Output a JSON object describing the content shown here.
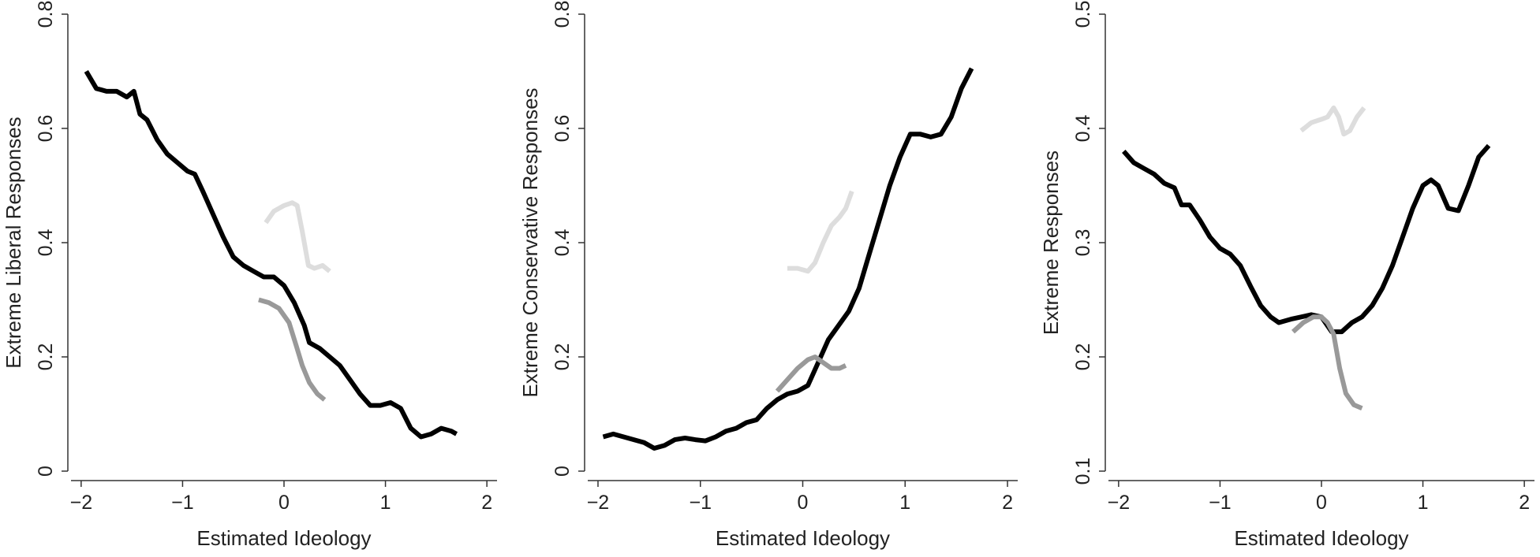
{
  "chart_data": [
    {
      "type": "line",
      "xlabel": "Estimated Ideology",
      "ylabel": "Extreme Liberal Responses",
      "xlim": [
        -2.1,
        2.1
      ],
      "ylim": [
        0,
        0.8
      ],
      "xticks": [
        -2,
        -1,
        0,
        1,
        2
      ],
      "xtick_labels": [
        "−2",
        "−1",
        "0",
        "1",
        "2"
      ],
      "yticks": [
        0,
        0.2,
        0.4,
        0.6,
        0.8
      ],
      "ytick_labels": [
        "0",
        "0.2",
        "0.4",
        "0.6",
        "0.8"
      ],
      "grid": false,
      "series": [
        {
          "color": "#000000",
          "points": [
            [
              -1.95,
              0.7
            ],
            [
              -1.85,
              0.67
            ],
            [
              -1.75,
              0.665
            ],
            [
              -1.65,
              0.665
            ],
            [
              -1.55,
              0.655
            ],
            [
              -1.48,
              0.665
            ],
            [
              -1.42,
              0.625
            ],
            [
              -1.35,
              0.615
            ],
            [
              -1.25,
              0.58
            ],
            [
              -1.15,
              0.555
            ],
            [
              -1.05,
              0.54
            ],
            [
              -0.95,
              0.525
            ],
            [
              -0.88,
              0.52
            ],
            [
              -0.8,
              0.49
            ],
            [
              -0.7,
              0.45
            ],
            [
              -0.6,
              0.41
            ],
            [
              -0.5,
              0.375
            ],
            [
              -0.4,
              0.36
            ],
            [
              -0.3,
              0.35
            ],
            [
              -0.2,
              0.34
            ],
            [
              -0.1,
              0.34
            ],
            [
              0.0,
              0.325
            ],
            [
              0.1,
              0.295
            ],
            [
              0.2,
              0.255
            ],
            [
              0.25,
              0.225
            ],
            [
              0.35,
              0.215
            ],
            [
              0.45,
              0.2
            ],
            [
              0.55,
              0.185
            ],
            [
              0.65,
              0.16
            ],
            [
              0.75,
              0.135
            ],
            [
              0.85,
              0.115
            ],
            [
              0.95,
              0.115
            ],
            [
              1.05,
              0.12
            ],
            [
              1.15,
              0.11
            ],
            [
              1.25,
              0.075
            ],
            [
              1.35,
              0.06
            ],
            [
              1.45,
              0.065
            ],
            [
              1.55,
              0.075
            ],
            [
              1.65,
              0.07
            ],
            [
              1.7,
              0.065
            ]
          ]
        },
        {
          "color": "#999999",
          "points": [
            [
              -0.25,
              0.3
            ],
            [
              -0.15,
              0.295
            ],
            [
              -0.05,
              0.285
            ],
            [
              0.05,
              0.26
            ],
            [
              0.12,
              0.22
            ],
            [
              0.18,
              0.185
            ],
            [
              0.25,
              0.155
            ],
            [
              0.33,
              0.135
            ],
            [
              0.4,
              0.125
            ]
          ]
        },
        {
          "color": "#dddddd",
          "points": [
            [
              -0.18,
              0.435
            ],
            [
              -0.1,
              0.455
            ],
            [
              0.0,
              0.465
            ],
            [
              0.08,
              0.47
            ],
            [
              0.13,
              0.465
            ],
            [
              0.18,
              0.42
            ],
            [
              0.24,
              0.36
            ],
            [
              0.3,
              0.355
            ],
            [
              0.38,
              0.36
            ],
            [
              0.45,
              0.35
            ]
          ]
        }
      ]
    },
    {
      "type": "line",
      "xlabel": "Estimated Ideology",
      "ylabel": "Extreme Conservative Responses",
      "xlim": [
        -2.1,
        2.1
      ],
      "ylim": [
        0,
        0.8
      ],
      "xticks": [
        -2,
        -1,
        0,
        1,
        2
      ],
      "xtick_labels": [
        "−2",
        "−1",
        "0",
        "1",
        "2"
      ],
      "yticks": [
        0,
        0.2,
        0.4,
        0.6,
        0.8
      ],
      "ytick_labels": [
        "0",
        "0.2",
        "0.4",
        "0.6",
        "0.8"
      ],
      "grid": false,
      "series": [
        {
          "color": "#000000",
          "points": [
            [
              -1.95,
              0.06
            ],
            [
              -1.85,
              0.065
            ],
            [
              -1.75,
              0.06
            ],
            [
              -1.65,
              0.055
            ],
            [
              -1.55,
              0.05
            ],
            [
              -1.45,
              0.04
            ],
            [
              -1.35,
              0.045
            ],
            [
              -1.25,
              0.055
            ],
            [
              -1.15,
              0.058
            ],
            [
              -1.05,
              0.055
            ],
            [
              -0.95,
              0.053
            ],
            [
              -0.85,
              0.06
            ],
            [
              -0.75,
              0.07
            ],
            [
              -0.65,
              0.075
            ],
            [
              -0.55,
              0.085
            ],
            [
              -0.45,
              0.09
            ],
            [
              -0.35,
              0.11
            ],
            [
              -0.25,
              0.125
            ],
            [
              -0.15,
              0.135
            ],
            [
              -0.05,
              0.14
            ],
            [
              0.05,
              0.15
            ],
            [
              0.15,
              0.19
            ],
            [
              0.25,
              0.23
            ],
            [
              0.35,
              0.255
            ],
            [
              0.45,
              0.28
            ],
            [
              0.55,
              0.32
            ],
            [
              0.65,
              0.38
            ],
            [
              0.75,
              0.44
            ],
            [
              0.85,
              0.5
            ],
            [
              0.95,
              0.55
            ],
            [
              1.05,
              0.59
            ],
            [
              1.15,
              0.59
            ],
            [
              1.25,
              0.585
            ],
            [
              1.35,
              0.59
            ],
            [
              1.45,
              0.62
            ],
            [
              1.55,
              0.67
            ],
            [
              1.65,
              0.705
            ]
          ]
        },
        {
          "color": "#999999",
          "points": [
            [
              -0.25,
              0.14
            ],
            [
              -0.15,
              0.16
            ],
            [
              -0.05,
              0.18
            ],
            [
              0.05,
              0.195
            ],
            [
              0.12,
              0.2
            ],
            [
              0.2,
              0.19
            ],
            [
              0.28,
              0.18
            ],
            [
              0.36,
              0.18
            ],
            [
              0.42,
              0.185
            ]
          ]
        },
        {
          "color": "#dddddd",
          "points": [
            [
              -0.15,
              0.355
            ],
            [
              -0.05,
              0.355
            ],
            [
              0.05,
              0.35
            ],
            [
              0.12,
              0.365
            ],
            [
              0.2,
              0.4
            ],
            [
              0.28,
              0.43
            ],
            [
              0.36,
              0.445
            ],
            [
              0.42,
              0.46
            ],
            [
              0.48,
              0.49
            ]
          ]
        }
      ]
    },
    {
      "type": "line",
      "xlabel": "Estimated Ideology",
      "ylabel": "Extreme Responses",
      "xlim": [
        -2.1,
        2.1
      ],
      "ylim": [
        0.1,
        0.5
      ],
      "xticks": [
        -2,
        -1,
        0,
        1,
        2
      ],
      "xtick_labels": [
        "−2",
        "−1",
        "0",
        "1",
        "2"
      ],
      "yticks": [
        0.1,
        0.2,
        0.3,
        0.4,
        0.5
      ],
      "ytick_labels": [
        "0.1",
        "0.2",
        "0.3",
        "0.4",
        "0.5"
      ],
      "grid": false,
      "series": [
        {
          "color": "#000000",
          "points": [
            [
              -1.95,
              0.38
            ],
            [
              -1.85,
              0.37
            ],
            [
              -1.75,
              0.365
            ],
            [
              -1.65,
              0.36
            ],
            [
              -1.55,
              0.352
            ],
            [
              -1.45,
              0.348
            ],
            [
              -1.38,
              0.333
            ],
            [
              -1.3,
              0.333
            ],
            [
              -1.2,
              0.32
            ],
            [
              -1.1,
              0.305
            ],
            [
              -1.0,
              0.295
            ],
            [
              -0.9,
              0.29
            ],
            [
              -0.8,
              0.28
            ],
            [
              -0.7,
              0.262
            ],
            [
              -0.6,
              0.245
            ],
            [
              -0.5,
              0.235
            ],
            [
              -0.42,
              0.23
            ],
            [
              -0.3,
              0.233
            ],
            [
              -0.2,
              0.235
            ],
            [
              -0.1,
              0.237
            ],
            [
              0.0,
              0.235
            ],
            [
              0.1,
              0.222
            ],
            [
              0.2,
              0.222
            ],
            [
              0.3,
              0.23
            ],
            [
              0.4,
              0.235
            ],
            [
              0.5,
              0.245
            ],
            [
              0.6,
              0.26
            ],
            [
              0.7,
              0.28
            ],
            [
              0.8,
              0.305
            ],
            [
              0.9,
              0.33
            ],
            [
              1.0,
              0.35
            ],
            [
              1.08,
              0.355
            ],
            [
              1.15,
              0.35
            ],
            [
              1.25,
              0.33
            ],
            [
              1.35,
              0.328
            ],
            [
              1.45,
              0.35
            ],
            [
              1.55,
              0.375
            ],
            [
              1.65,
              0.385
            ]
          ]
        },
        {
          "color": "#999999",
          "points": [
            [
              -0.28,
              0.222
            ],
            [
              -0.18,
              0.23
            ],
            [
              -0.08,
              0.235
            ],
            [
              0.0,
              0.235
            ],
            [
              0.06,
              0.23
            ],
            [
              0.12,
              0.22
            ],
            [
              0.18,
              0.19
            ],
            [
              0.24,
              0.168
            ],
            [
              0.32,
              0.158
            ],
            [
              0.4,
              0.155
            ]
          ]
        },
        {
          "color": "#dddddd",
          "points": [
            [
              -0.2,
              0.398
            ],
            [
              -0.1,
              0.405
            ],
            [
              0.0,
              0.408
            ],
            [
              0.06,
              0.41
            ],
            [
              0.12,
              0.418
            ],
            [
              0.17,
              0.41
            ],
            [
              0.22,
              0.395
            ],
            [
              0.28,
              0.398
            ],
            [
              0.35,
              0.41
            ],
            [
              0.42,
              0.418
            ]
          ]
        }
      ]
    }
  ]
}
